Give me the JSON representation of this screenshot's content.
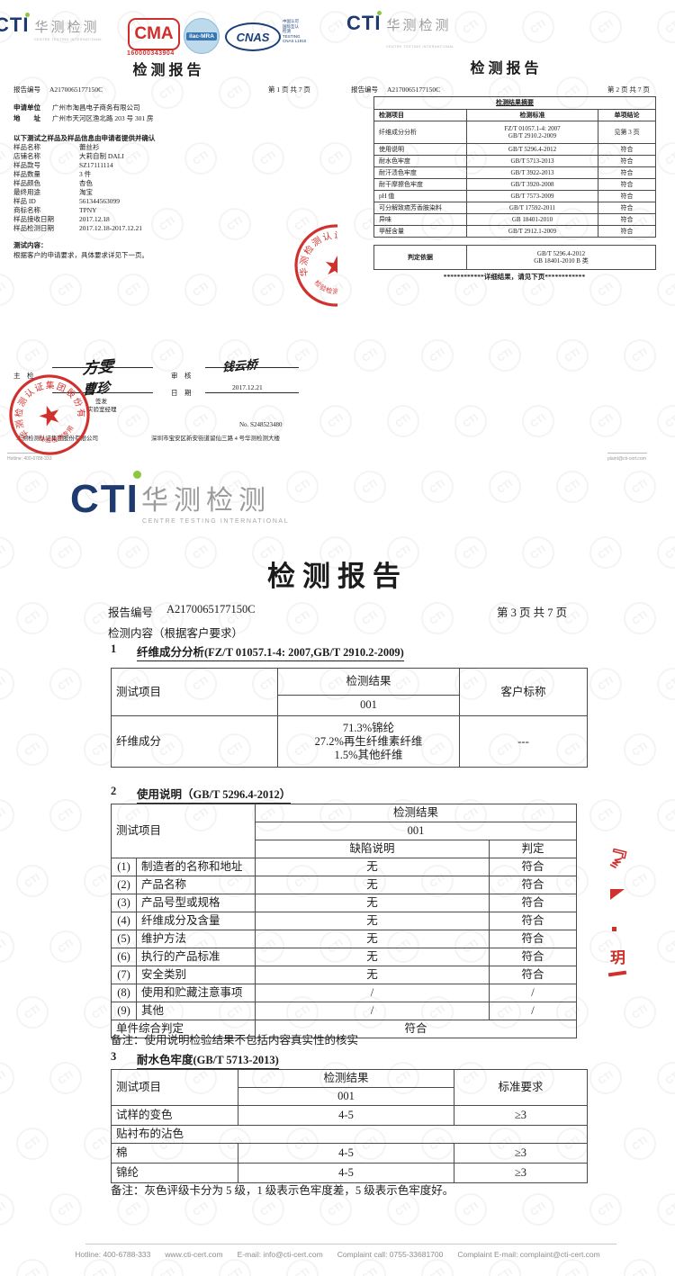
{
  "common": {
    "watermark": "CTI",
    "brand": {
      "cti": "CTI",
      "cn": "华测检测",
      "en": "CENTRE TESTING INTERNATIONAL"
    },
    "doc_title": "检测报告",
    "report_no_label": "报告编号",
    "report_no": "A2170065177150C",
    "colors": {
      "navy": "#1e3a6e",
      "green": "#8dc63f",
      "red": "#d0312d"
    }
  },
  "page1": {
    "page_info": "第 1 页  共 7 页",
    "cma": {
      "label": "CMA",
      "number": "160000343904"
    },
    "ilac": "ilac-MRA",
    "cnas": {
      "label": "CNAS",
      "line1": "中国认可",
      "line2": "国际互认",
      "line3": "检测",
      "line4": "TESTING",
      "line5": "CNAS L1910"
    },
    "applicant_label": "申请单位",
    "applicant": "广州市淘昌电子商务有限公司",
    "address_label": "地　　址",
    "address": "广州市天河区渔北路 203 号 301 房",
    "sample_note": "以下测试之样品及样品信息由申请者提供并确认",
    "fields": [
      {
        "label": "样品名称",
        "value": "蕾丝衫"
      },
      {
        "label": "店铺名称",
        "value": "大莉自制 DALI"
      },
      {
        "label": "样品款号",
        "value": "SZ17111114"
      },
      {
        "label": "样品数量",
        "value": "3 件"
      },
      {
        "label": "样品颜色",
        "value": "杏色"
      },
      {
        "label": "最终用途",
        "value": "淘宝"
      },
      {
        "label": "样品 ID",
        "value": "561344563099"
      },
      {
        "label": "商标名称",
        "value": "TPNY"
      },
      {
        "label": "样品接收日期",
        "value": "2017.12.18"
      },
      {
        "label": "样品检测日期",
        "value": "2017.12.18-2017.12.21"
      }
    ],
    "test_content_label": "测试内容：",
    "test_content": "根据客户的申请要求，具体要求详见下一页。",
    "sign": {
      "chief_label": "主　检",
      "chief_name": "方雯",
      "review_label": "审　核",
      "review_name": "钱云桥",
      "approver_name": "曹珍",
      "approver_role1": "签发",
      "approver_role2": "实验室经理",
      "date_label": "日　期",
      "date": "2017.12.21",
      "serial": "No. S248523480",
      "company": "华测检测认证集团股份有限公司",
      "lab_address": "深圳市宝安区新安街道留仙三路 4 号华测检测大楼"
    },
    "stamp": {
      "arc": "华测检测认证集团股份有限公司",
      "bottom": "检验检测专用章"
    },
    "footer": "Hotline: 400-6788-333"
  },
  "page2": {
    "page_info": "第 2 页  共 7 页",
    "summary_title": "检测结果摘要",
    "col_item": "检测项目",
    "col_standard": "检测标准",
    "col_conclusion": "单项结论",
    "rows": [
      {
        "item": "纤维成分分析",
        "standard1": "FZ/T 01057.1-4: 2007",
        "standard2": "GB/T 2910.2-2009",
        "conclusion": "见第 3 页"
      },
      {
        "item": "使用说明",
        "standard": "GB/T 5296.4-2012",
        "conclusion": "符合"
      },
      {
        "item": "耐水色牢度",
        "standard": "GB/T 5713-2013",
        "conclusion": "符合"
      },
      {
        "item": "耐汗渍色牢度",
        "standard": "GB/T 3922-2013",
        "conclusion": "符合"
      },
      {
        "item": "耐干摩擦色牢度",
        "standard": "GB/T 3920-2008",
        "conclusion": "符合"
      },
      {
        "item": "pH 值",
        "standard": "GB/T 7573-2009",
        "conclusion": "符合"
      },
      {
        "item": "可分解致癌芳香胺染料",
        "standard": "GB/T 17592-2011",
        "conclusion": "符合"
      },
      {
        "item": "异味",
        "standard": "GB 18401-2010",
        "conclusion": "符合"
      },
      {
        "item": "甲醛含量",
        "standard": "GB/T 2912.1-2009",
        "conclusion": "符合"
      }
    ],
    "judge_label": "判定依据",
    "judge_line1": "GB/T 5296.4-2012",
    "judge_line2": "GB 18401-2010 B 类",
    "more_note": "************详细结果，请见下页************",
    "footer": "plaint@cti-cert.com"
  },
  "page3": {
    "page_info": "第 3 页  共 7 页",
    "content_label": "检测内容（根据客户要求）",
    "sec1": {
      "num": "1",
      "title": "纤维成分分析(FZ/T 01057.1-4: 2007,GB/T 2910.2-2009)",
      "col_item": "测试项目",
      "col_result": "检测结果",
      "col_sample": "001",
      "col_client": "客户标称",
      "row_item": "纤维成分",
      "result_line1": "71.3%锦纶",
      "result_line2": "27.2%再生纤维素纤维",
      "result_line3": "1.5%其他纤维",
      "client_value": "---"
    },
    "sec2": {
      "num": "2",
      "title": "使用说明（GB/T 5296.4-2012）",
      "col_item": "测试项目",
      "col_result": "检测结果",
      "col_sample": "001",
      "col_defect": "缺陷说明",
      "col_judge": "判定",
      "rows": [
        {
          "no": "(1)",
          "item": "制造者的名称和地址",
          "defect": "无",
          "judge": "符合"
        },
        {
          "no": "(2)",
          "item": "产品名称",
          "defect": "无",
          "judge": "符合"
        },
        {
          "no": "(3)",
          "item": "产品号型或规格",
          "defect": "无",
          "judge": "符合"
        },
        {
          "no": "(4)",
          "item": "纤维成分及含量",
          "defect": "无",
          "judge": "符合"
        },
        {
          "no": "(5)",
          "item": "维护方法",
          "defect": "无",
          "judge": "符合"
        },
        {
          "no": "(6)",
          "item": "执行的产品标准",
          "defect": "无",
          "judge": "符合"
        },
        {
          "no": "(7)",
          "item": "安全类别",
          "defect": "无",
          "judge": "符合"
        },
        {
          "no": "(8)",
          "item": "使用和贮藏注意事项",
          "defect": "/",
          "judge": "/"
        },
        {
          "no": "(9)",
          "item": "其他",
          "defect": "/",
          "judge": "/"
        }
      ],
      "final_label": "单件综合判定",
      "final_value": "符合",
      "note": "备注：使用说明检验结果不包括内容真实性的核实"
    },
    "sec3": {
      "num": "3",
      "title": "耐水色牢度(GB/T 5713-2013)",
      "col_item": "测试项目",
      "col_result": "检测结果",
      "col_sample": "001",
      "col_req": "标准要求",
      "row1": {
        "item": "试样的变色",
        "result": "4-5",
        "req": "≥3"
      },
      "row2": {
        "item": "贴衬布的沾色"
      },
      "row3": {
        "item": "棉",
        "result": "4-5",
        "req": "≥3"
      },
      "row4": {
        "item": "锦纶",
        "result": "4-5",
        "req": "≥3"
      },
      "note": "备注：灰色评级卡分为 5 级，1 级表示色牢度差，5 级表示色牢度好。"
    },
    "footer": {
      "items": [
        "Hotline: 400-6788-333",
        "www.cti-cert.com",
        "E-mail: info@cti-cert.com",
        "Complaint call: 0755-33681700",
        "Complaint E-mail: complaint@cti-cert.com"
      ]
    }
  }
}
